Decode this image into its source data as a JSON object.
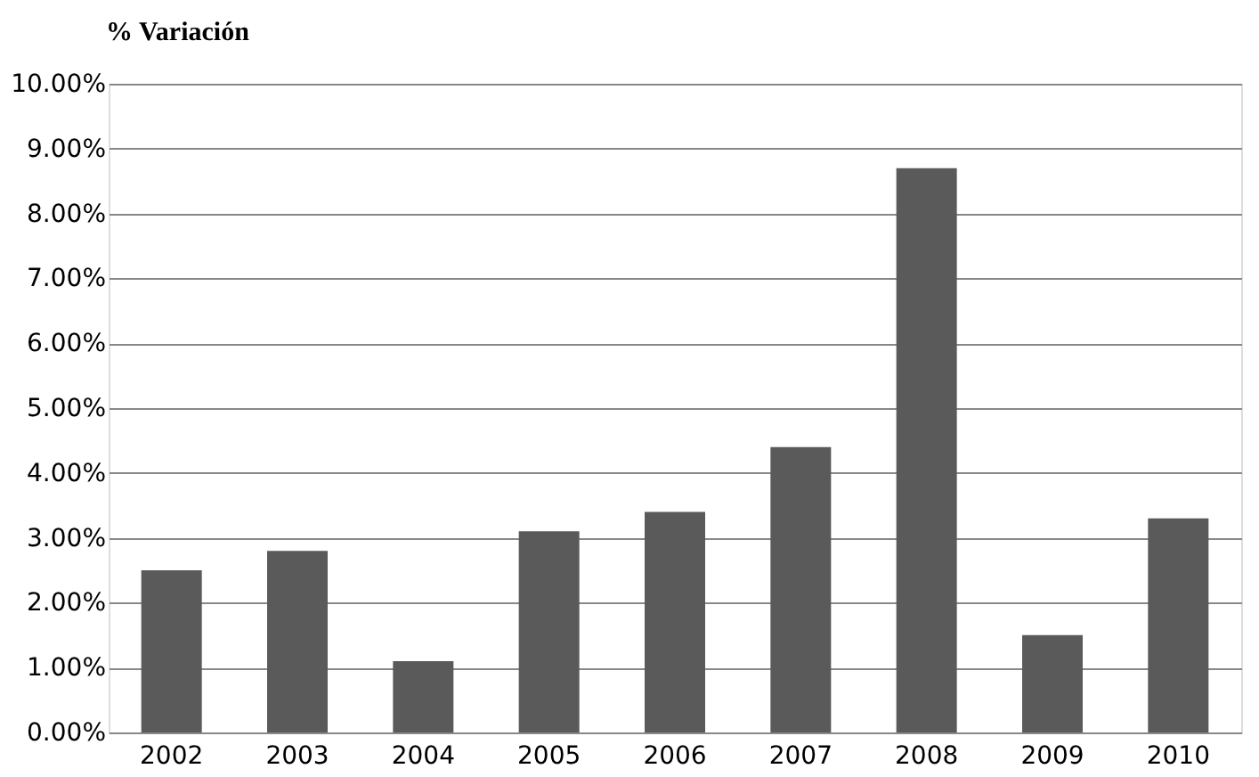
{
  "chart_data": {
    "type": "bar",
    "ylabel": "% Variación",
    "categories": [
      "2002",
      "2003",
      "2004",
      "2005",
      "2006",
      "2007",
      "2008",
      "2009",
      "2010"
    ],
    "values": [
      2.5,
      2.8,
      1.1,
      3.1,
      3.4,
      4.4,
      8.7,
      1.5,
      3.3
    ],
    "color": "#5a5a5a",
    "ylim": [
      0,
      10
    ],
    "yticks": [
      {
        "value": 0,
        "label": "0.00%"
      },
      {
        "value": 1,
        "label": "1.00%"
      },
      {
        "value": 2,
        "label": "2.00%"
      },
      {
        "value": 3,
        "label": "3.00%"
      },
      {
        "value": 4,
        "label": "4.00%"
      },
      {
        "value": 5,
        "label": "5.00%"
      },
      {
        "value": 6,
        "label": "6.00%"
      },
      {
        "value": 7,
        "label": "7.00%"
      },
      {
        "value": 8,
        "label": "8.00%"
      },
      {
        "value": 9,
        "label": "9.00%"
      },
      {
        "value": 10,
        "label": "10.00%"
      }
    ],
    "grid": "y"
  }
}
